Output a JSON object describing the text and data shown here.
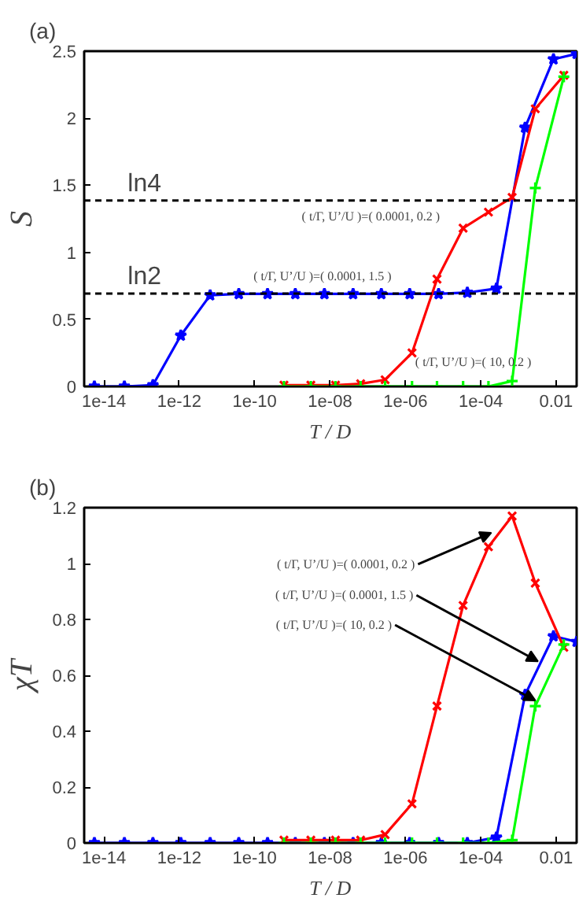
{
  "chart_data": [
    {
      "type": "line",
      "title": "(a)",
      "xlabel": "T / D",
      "ylabel": "S",
      "log": "x",
      "xlim": [
        3e-15,
        0.035
      ],
      "ylim": [
        0,
        2.5
      ],
      "xticks": [
        {
          "value": 1e-14,
          "label": "1e-14"
        },
        {
          "value": 1e-12,
          "label": "1e-12"
        },
        {
          "value": 1e-10,
          "label": "1e-10"
        },
        {
          "value": 1e-08,
          "label": "1e-08"
        },
        {
          "value": 1e-06,
          "label": "1e-06"
        },
        {
          "value": 0.0001,
          "label": "1e-04"
        },
        {
          "value": 0.01,
          "label": "0.01"
        }
      ],
      "yticks": [
        0,
        0.5,
        1,
        1.5,
        2,
        2.5
      ],
      "grid": false,
      "ref_lines": [
        {
          "axis": "y",
          "value": 1.386,
          "label": "ln4",
          "color": "#000000",
          "line_style": "dashed"
        },
        {
          "axis": "y",
          "value": 0.693,
          "label": "ln2",
          "color": "#000000",
          "line_style": "dashed"
        }
      ],
      "annotations": [
        "( t/Γ, U’/U )=( 0.0001, 0.2 )",
        "( t/Γ, U’/U )=( 0.0001, 1.5 )",
        "( t/Γ, U’/U )=( 10, 0.2 )"
      ],
      "series": [
        {
          "color": "#0000ff",
          "marker": "star",
          "x": [
            5.6e-15,
            3.5e-14,
            2e-13,
            1.1e-12,
            6.6e-12,
            3.8e-11,
            2.2e-10,
            1.2e-09,
            7.1e-09,
            4.1e-08,
            2.3e-07,
            1.3e-06,
            7.6e-06,
            4.4e-05,
            0.00026,
            0.0015,
            0.0085,
            0.035
          ],
          "values": [
            0,
            0,
            0.01,
            0.38,
            0.68,
            0.69,
            0.69,
            0.69,
            0.69,
            0.69,
            0.69,
            0.69,
            0.69,
            0.7,
            0.73,
            1.93,
            2.44,
            2.48
          ]
        },
        {
          "color": "#ff0000",
          "marker": "cross",
          "x": [
            6e-10,
            3.1e-09,
            1.4e-08,
            6.5e-08,
            2.9e-07,
            1.5e-06,
            6.9e-06,
            3.4e-05,
            0.00016,
            0.00068,
            0.0028,
            0.016
          ],
          "values": [
            0.01,
            0.01,
            0.01,
            0.02,
            0.05,
            0.25,
            0.8,
            1.18,
            1.3,
            1.41,
            2.07,
            2.32
          ]
        },
        {
          "color": "#00ff00",
          "marker": "plus",
          "x": [
            6e-10,
            3.1e-09,
            1.4e-08,
            6.5e-08,
            2.9e-07,
            1.5e-06,
            6.9e-06,
            3.4e-05,
            0.00016,
            0.00068,
            0.0028,
            0.016
          ],
          "values": [
            0,
            0,
            0,
            0,
            0,
            0,
            0,
            0,
            0,
            0.04,
            1.48,
            2.31
          ]
        }
      ]
    },
    {
      "type": "line",
      "title": "(b)",
      "xlabel": "T / D",
      "ylabel": "χT",
      "log": "x",
      "xlim": [
        3e-15,
        0.035
      ],
      "ylim": [
        0,
        1.2
      ],
      "xticks": [
        {
          "value": 1e-14,
          "label": "1e-14"
        },
        {
          "value": 1e-12,
          "label": "1e-12"
        },
        {
          "value": 1e-10,
          "label": "1e-10"
        },
        {
          "value": 1e-08,
          "label": "1e-08"
        },
        {
          "value": 1e-06,
          "label": "1e-06"
        },
        {
          "value": 0.0001,
          "label": "1e-04"
        },
        {
          "value": 0.01,
          "label": "0.01"
        }
      ],
      "yticks": [
        0,
        0.2,
        0.4,
        0.6,
        0.8,
        1,
        1.2
      ],
      "grid": false,
      "annotations": [
        {
          "text": "( t/Γ, U’/U )=( 0.0001, 0.2 )",
          "x": 0.00019,
          "y": 1.11
        },
        {
          "text": "( t/Γ, U’/U )=( 0.0001, 1.5 )",
          "x": 0.0033,
          "y": 0.65
        },
        {
          "text": "( t/Γ, U’/U )=( 10, 0.2 )",
          "x": 0.0028,
          "y": 0.51
        }
      ],
      "series": [
        {
          "color": "#0000ff",
          "marker": "star",
          "x": [
            5.6e-15,
            3.5e-14,
            2e-13,
            1.1e-12,
            6.6e-12,
            3.8e-11,
            2.2e-10,
            1.2e-09,
            7.1e-09,
            4.1e-08,
            2.3e-07,
            1.3e-06,
            7.6e-06,
            4.4e-05,
            0.00026,
            0.0015,
            0.0085,
            0.035
          ],
          "values": [
            0,
            0,
            0,
            0,
            0,
            0,
            0,
            0,
            0,
            0,
            0,
            0,
            0,
            0,
            0.02,
            0.53,
            0.74,
            0.72
          ]
        },
        {
          "color": "#ff0000",
          "marker": "cross",
          "x": [
            6e-10,
            3.1e-09,
            1.4e-08,
            6.5e-08,
            2.9e-07,
            1.5e-06,
            6.9e-06,
            3.4e-05,
            0.00016,
            0.00068,
            0.0028,
            0.016
          ],
          "values": [
            0.01,
            0.01,
            0.01,
            0.01,
            0.03,
            0.14,
            0.49,
            0.85,
            1.06,
            1.17,
            0.93,
            0.7
          ]
        },
        {
          "color": "#00ff00",
          "marker": "plus",
          "x": [
            6e-10,
            3.1e-09,
            1.4e-08,
            6.5e-08,
            2.9e-07,
            1.5e-06,
            6.9e-06,
            3.4e-05,
            0.00016,
            0.00068,
            0.0028,
            0.016
          ],
          "values": [
            0,
            0,
            0,
            0,
            0,
            0,
            0,
            0,
            0,
            0.01,
            0.49,
            0.71
          ]
        }
      ]
    }
  ]
}
